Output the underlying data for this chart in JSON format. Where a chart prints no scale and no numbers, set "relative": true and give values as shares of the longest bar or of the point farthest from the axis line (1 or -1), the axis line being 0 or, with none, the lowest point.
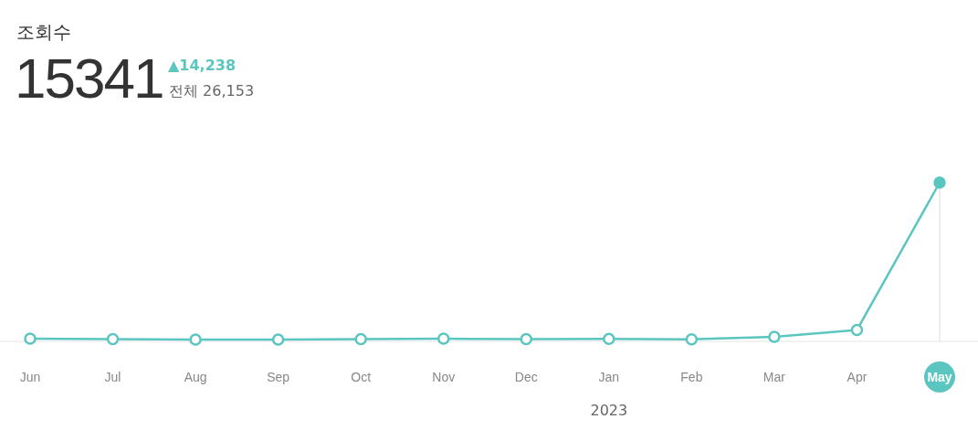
{
  "chart_data": {
    "type": "line",
    "title": "조회수",
    "subtitle": "15341",
    "annotations": [
      "▲14,238",
      "전체 26,153",
      "2023"
    ],
    "categories": [
      "Jun",
      "Jul",
      "Aug",
      "Sep",
      "Oct",
      "Nov",
      "Dec",
      "Jan",
      "Feb",
      "Mar",
      "Apr",
      "May"
    ],
    "series": [
      {
        "color": "#5bc5bf",
        "values": [
          0.017,
          0.014,
          0.011,
          0.011,
          0.014,
          0.017,
          0.014,
          0.016,
          0.013,
          0.029,
          0.072,
          1
        ]
      }
    ],
    "relative": true,
    "marker": "circle",
    "line_style": "solid",
    "ref_lines": [
      {
        "axis": "x",
        "value": "May",
        "color": "#dddddd"
      }
    ]
  }
}
